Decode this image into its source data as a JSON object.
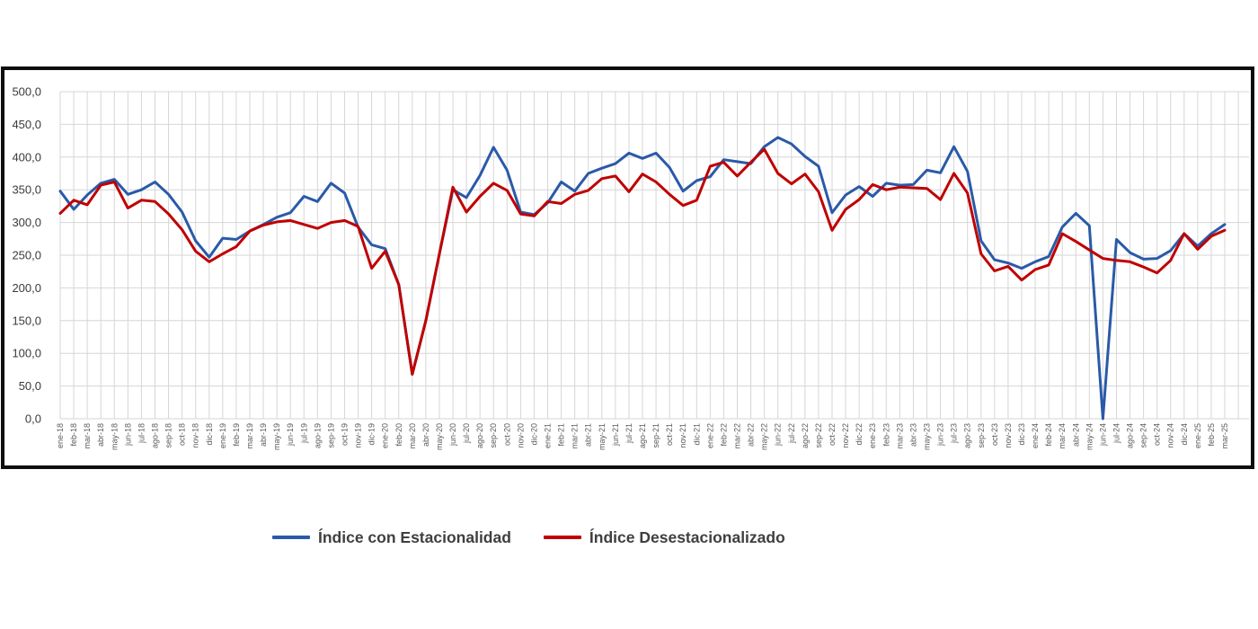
{
  "legend": {
    "items": [
      {
        "label": "Índice con Estacionalidad",
        "color": "#2a5aa8"
      },
      {
        "label": "Índice Desestacionalizado",
        "color": "#c00000"
      }
    ]
  },
  "axes": {
    "y_tick_labels": [
      "0,0",
      "50,0",
      "100,0",
      "150,0",
      "200,0",
      "250,0",
      "300,0",
      "350,0",
      "400,0",
      "450,0",
      "500,0"
    ]
  },
  "colors": {
    "frame": "#0e0e0e",
    "gridline": "#d6d6d6",
    "tick_text": "#3a3a3a",
    "x_tick_text": "#5a5a5a",
    "background": "#ffffff"
  },
  "chart_data": {
    "type": "line",
    "title": "",
    "xlabel": "",
    "ylabel": "",
    "ylim": [
      0,
      500
    ],
    "ytick_step": 50,
    "grid": true,
    "legend_position": "bottom",
    "categories": [
      "ene-18",
      "feb-18",
      "mar-18",
      "abr-18",
      "may-18",
      "jun-18",
      "jul-18",
      "ago-18",
      "sep-18",
      "oct-18",
      "nov-18",
      "dic-18",
      "ene-19",
      "feb-19",
      "mar-19",
      "abr-19",
      "may-19",
      "jun-19",
      "jul-19",
      "ago-19",
      "sep-19",
      "oct-19",
      "nov-19",
      "dic-19",
      "ene-20",
      "feb-20",
      "mar-20",
      "abr-20",
      "may-20",
      "jun-20",
      "jul-20",
      "ago-20",
      "sep-20",
      "oct-20",
      "nov-20",
      "dic-20",
      "ene-21",
      "feb-21",
      "mar-21",
      "abr-21",
      "may-21",
      "jun-21",
      "jul-21",
      "ago-21",
      "sep-21",
      "oct-21",
      "nov-21",
      "dic-21",
      "ene-22",
      "feb-22",
      "mar-22",
      "abr-22",
      "may-22",
      "jun-22",
      "jul-22",
      "ago-22",
      "sep-22",
      "oct-22",
      "nov-22",
      "dic-22",
      "ene-23",
      "feb-23",
      "mar-23",
      "abr-23",
      "may-23",
      "jun-23",
      "jul-23",
      "ago-23",
      "sep-23",
      "oct-23",
      "nov-23",
      "dic-23",
      "ene-24",
      "feb-24",
      "mar-24",
      "abr-24",
      "may-24",
      "jun-24",
      "jul-24",
      "ago-24",
      "sep-24",
      "oct-24",
      "nov-24",
      "dic-24",
      "ene-25",
      "feb-25",
      "mar-25"
    ],
    "series": [
      {
        "name": "Índice con Estacionalidad",
        "color": "#2a5aa8",
        "values": [
          348,
          320,
          342,
          360,
          366,
          343,
          350,
          362,
          343,
          316,
          272,
          247,
          276,
          274,
          287,
          297,
          308,
          315,
          340,
          332,
          360,
          345,
          293,
          266,
          260,
          205,
          68,
          150,
          252,
          350,
          338,
          372,
          415,
          380,
          316,
          312,
          330,
          362,
          348,
          375,
          383,
          390,
          406,
          398,
          406,
          384,
          348,
          364,
          370,
          396,
          393,
          390,
          416,
          430,
          420,
          401,
          386,
          315,
          342,
          355,
          340,
          360,
          357,
          358,
          380,
          376,
          416,
          378,
          272,
          243,
          238,
          230,
          240,
          248,
          293,
          314,
          295,
          0,
          274,
          254,
          244,
          245,
          257,
          283,
          264,
          283,
          297
        ]
      },
      {
        "name": "Índice Desestacionalizado",
        "color": "#c00000",
        "values": [
          314,
          334,
          327,
          357,
          362,
          322,
          334,
          332,
          313,
          289,
          256,
          240,
          252,
          263,
          287,
          296,
          301,
          303,
          297,
          291,
          300,
          303,
          294,
          230,
          256,
          205,
          68,
          150,
          252,
          354,
          316,
          340,
          360,
          349,
          313,
          310,
          332,
          329,
          343,
          349,
          367,
          371,
          347,
          374,
          362,
          343,
          326,
          334,
          386,
          392,
          371,
          392,
          412,
          375,
          359,
          374,
          347,
          288,
          320,
          335,
          358,
          350,
          354,
          353,
          352,
          335,
          375,
          345,
          252,
          226,
          233,
          212,
          228,
          235,
          283,
          271,
          258,
          245,
          242,
          240,
          232,
          223,
          242,
          283,
          259,
          279,
          288
        ]
      }
    ]
  }
}
